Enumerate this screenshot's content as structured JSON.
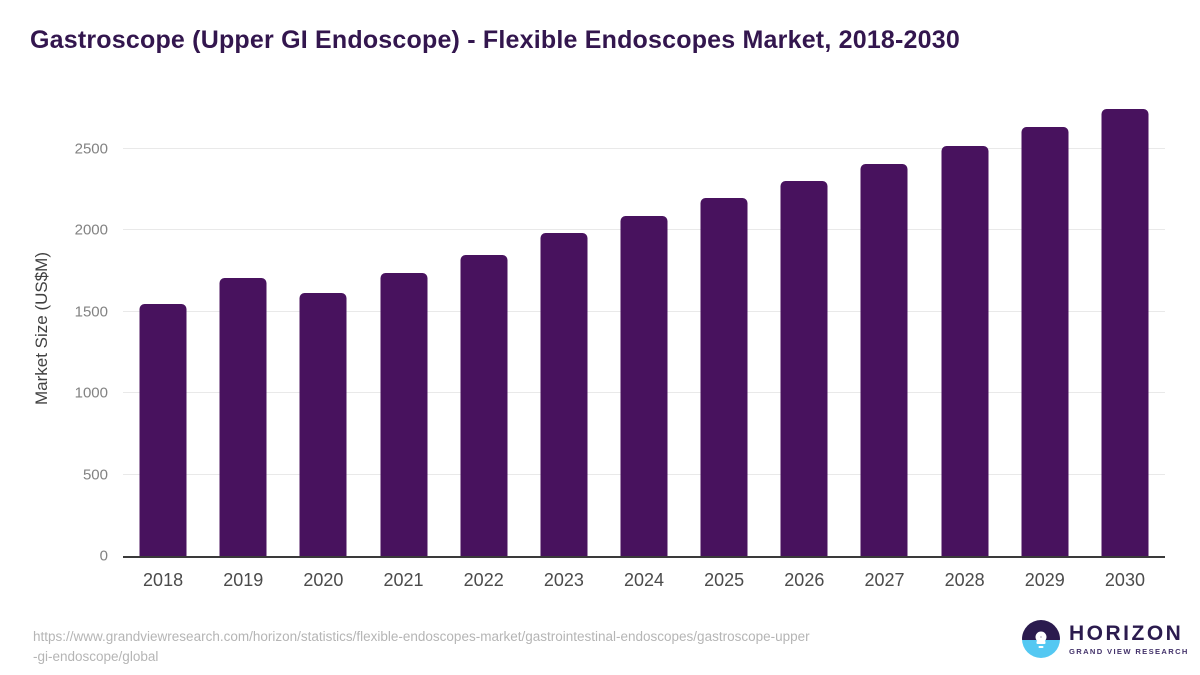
{
  "title": "Gastroscope (Upper GI Endoscope) - Flexible Endoscopes Market, 2018-2030",
  "chart_data": {
    "type": "bar",
    "title": "Gastroscope (Upper GI Endoscope) - Flexible Endoscopes Market, 2018-2030",
    "categories": [
      "2018",
      "2019",
      "2020",
      "2021",
      "2022",
      "2023",
      "2024",
      "2025",
      "2026",
      "2027",
      "2028",
      "2029",
      "2030"
    ],
    "values": [
      1550,
      1710,
      1615,
      1735,
      1850,
      1985,
      2090,
      2200,
      2300,
      2410,
      2520,
      2635,
      2745
    ],
    "xlabel": "",
    "ylabel": "Market Size (US$M)",
    "ylim": [
      0,
      2800
    ],
    "yticks": [
      0,
      500,
      1000,
      1500,
      2000,
      2500
    ],
    "grid": true,
    "legend": "none",
    "bar_color": "#48125E"
  },
  "colors": {
    "title": "#33164e",
    "bar": "#48125E",
    "axis_line": "#3a3a3a",
    "gridline": "#e9e9e9",
    "y_tick": "#828282",
    "x_tick": "#4b4b4b",
    "url_text": "#b5b5b5",
    "logo_dark": "#2b1b4e",
    "logo_blue": "#54c8f2"
  },
  "footer": {
    "url_line1": "https://www.grandviewresearch.com/horizon/statistics/flexible-endoscopes-market/gastrointestinal-endoscopes/gastroscope-upper",
    "url_line2": "-gi-endoscope/global",
    "logo": {
      "name": "HORIZON",
      "subtitle": "GRAND VIEW RESEARCH"
    }
  }
}
